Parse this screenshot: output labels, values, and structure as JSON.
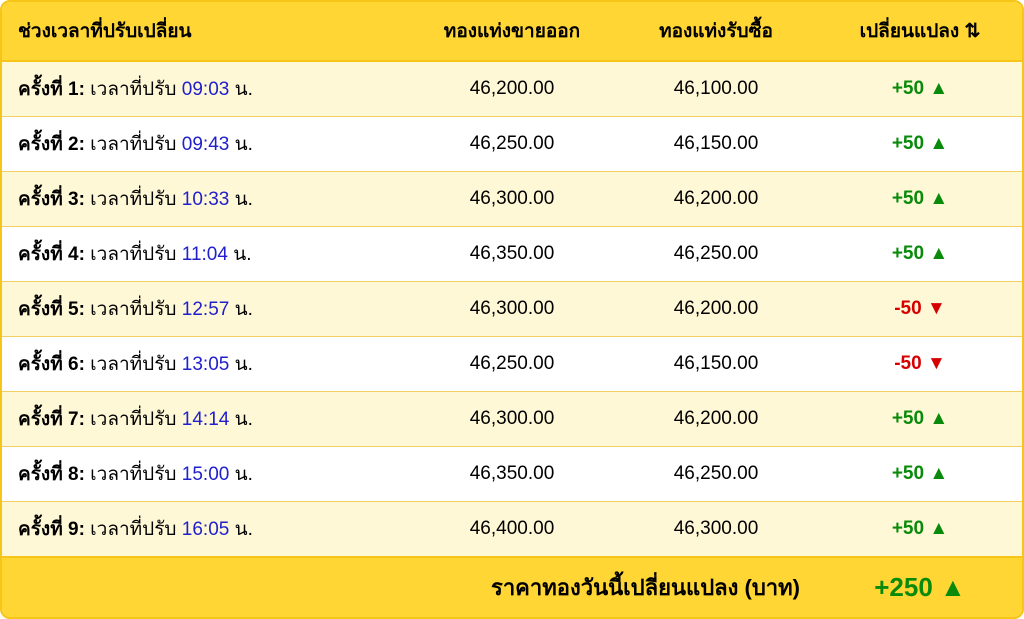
{
  "colors": {
    "header_bg": "#ffd633",
    "border": "#f5c518",
    "row_odd": "#fff8d6",
    "row_even": "#ffffff",
    "time": "#2020cc",
    "up": "#0a8a0a",
    "down": "#d60000"
  },
  "arrows": {
    "up": "▲",
    "down": "▼",
    "both": "⇅"
  },
  "headers": {
    "time": "ช่วงเวลาที่ปรับเปลี่ยน",
    "sell": "ทองแท่งขายออก",
    "buy": "ทองแท่งรับซื้อ",
    "change": "เปลี่ยนแปลง ⇅"
  },
  "row_template": {
    "prefix": "ครั้งที่",
    "label": "เวลาที่ปรับ",
    "suffix": "น."
  },
  "rows": [
    {
      "n": "1",
      "time": "09:03",
      "sell": "46,200.00",
      "buy": "46,100.00",
      "change": "+50",
      "dir": "up"
    },
    {
      "n": "2",
      "time": "09:43",
      "sell": "46,250.00",
      "buy": "46,150.00",
      "change": "+50",
      "dir": "up"
    },
    {
      "n": "3",
      "time": "10:33",
      "sell": "46,300.00",
      "buy": "46,200.00",
      "change": "+50",
      "dir": "up"
    },
    {
      "n": "4",
      "time": "11:04",
      "sell": "46,350.00",
      "buy": "46,250.00",
      "change": "+50",
      "dir": "up"
    },
    {
      "n": "5",
      "time": "12:57",
      "sell": "46,300.00",
      "buy": "46,200.00",
      "change": "-50",
      "dir": "down"
    },
    {
      "n": "6",
      "time": "13:05",
      "sell": "46,250.00",
      "buy": "46,150.00",
      "change": "-50",
      "dir": "down"
    },
    {
      "n": "7",
      "time": "14:14",
      "sell": "46,300.00",
      "buy": "46,200.00",
      "change": "+50",
      "dir": "up"
    },
    {
      "n": "8",
      "time": "15:00",
      "sell": "46,350.00",
      "buy": "46,250.00",
      "change": "+50",
      "dir": "up"
    },
    {
      "n": "9",
      "time": "16:05",
      "sell": "46,400.00",
      "buy": "46,300.00",
      "change": "+50",
      "dir": "up"
    }
  ],
  "footer": {
    "label": "ราคาทองวันนี้เปลี่ยนแปลง (บาท)",
    "value": "+250",
    "dir": "up"
  }
}
